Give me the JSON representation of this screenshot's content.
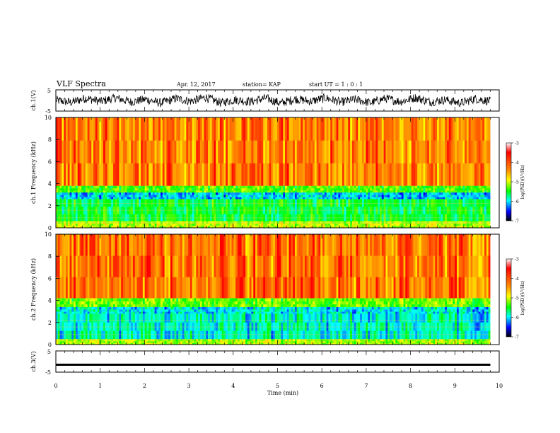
{
  "header": {
    "title": "VLF Spectra",
    "date": "Apr. 12, 2017",
    "station": "station= KAP",
    "start": "start  UT =   1 : 0  : 1"
  },
  "colorbar": {
    "label": "log(PSD)(V²/Hz)",
    "ticks": [
      "-3",
      "-4",
      "-5",
      "-6",
      "-7"
    ],
    "stops": [
      "#ff0000",
      "#ff8c00",
      "#ffff00",
      "#00ff00",
      "#00ffff",
      "#0000ff",
      "#000000"
    ]
  },
  "chart_data": [
    {
      "type": "line",
      "panel": "ch1-waveform",
      "ylabel": "ch.1(V)",
      "ylim": [
        -5,
        5
      ],
      "ytick_labels": [
        "5",
        "-5"
      ],
      "xlim": [
        0,
        10
      ],
      "note_values": "approximate envelope samples across 0-9.8 min",
      "y": [
        0.2,
        -1.5,
        1.8,
        -0.8,
        2.1,
        -1.2,
        0.9,
        -2.0,
        1.5,
        -0.5,
        2.4,
        -1.8,
        0.6,
        -1.0,
        1.9,
        -2.2,
        1.2,
        -0.7,
        2.0,
        -1.4,
        0.8,
        -1.9,
        1.6,
        -0.9,
        2.2,
        -1.1,
        0.5,
        -2.1,
        1.4,
        -0.6
      ]
    },
    {
      "type": "heatmap",
      "panel": "ch1-spectrogram",
      "ylabel": "ch.1 Frequency (kHz)",
      "ylim": [
        0,
        10
      ],
      "ytick_labels": [
        "10",
        "8",
        "6",
        "4",
        "2",
        "0"
      ],
      "xlim": [
        0,
        10
      ],
      "value_label": "log(PSD)(V²/Hz)",
      "vlim": [
        -7,
        -3
      ],
      "bands": [
        {
          "freq_khz": [
            3.8,
            10
          ],
          "log_psd": -3.7
        },
        {
          "freq_khz": [
            3.2,
            3.8
          ],
          "log_psd": -5.0
        },
        {
          "freq_khz": [
            2.6,
            3.2
          ],
          "log_psd": -5.9
        },
        {
          "freq_khz": [
            0.6,
            2.6
          ],
          "log_psd": -5.3
        },
        {
          "freq_khz": [
            0,
            0.6
          ],
          "log_psd": -4.6
        }
      ]
    },
    {
      "type": "heatmap",
      "panel": "ch2-spectrogram",
      "ylabel": "ch.2 Frequency (kHz)",
      "ylim": [
        0,
        10
      ],
      "ytick_labels": [
        "10",
        "8",
        "6",
        "4",
        "2",
        "0"
      ],
      "xlim": [
        0,
        10
      ],
      "value_label": "log(PSD)(V²/Hz)",
      "vlim": [
        -7,
        -3
      ],
      "bands": [
        {
          "freq_khz": [
            4.2,
            10
          ],
          "log_psd": -3.6
        },
        {
          "freq_khz": [
            3.4,
            4.2
          ],
          "log_psd": -4.9
        },
        {
          "freq_khz": [
            2.8,
            3.4
          ],
          "log_psd": -5.8
        },
        {
          "freq_khz": [
            0.5,
            2.8
          ],
          "log_psd": -5.7
        },
        {
          "freq_khz": [
            0,
            0.5
          ],
          "log_psd": -4.7
        }
      ]
    },
    {
      "type": "line",
      "panel": "ch3-waveform",
      "ylabel": "ch.3(V)",
      "ylim": [
        -5,
        5
      ],
      "ytick_labels": [
        "5",
        "-5"
      ],
      "xlim": [
        0,
        10
      ],
      "y": [
        -1.5,
        -1.5,
        -1.5,
        -1.5,
        -1.5,
        -1.5,
        -1.5,
        -1.5,
        -1.5,
        -1.5
      ]
    }
  ],
  "xaxis": {
    "label": "Time (min)",
    "ticks": [
      "0",
      "1",
      "2",
      "3",
      "4",
      "5",
      "6",
      "7",
      "8",
      "9",
      "10"
    ],
    "data_end": 9.8
  }
}
